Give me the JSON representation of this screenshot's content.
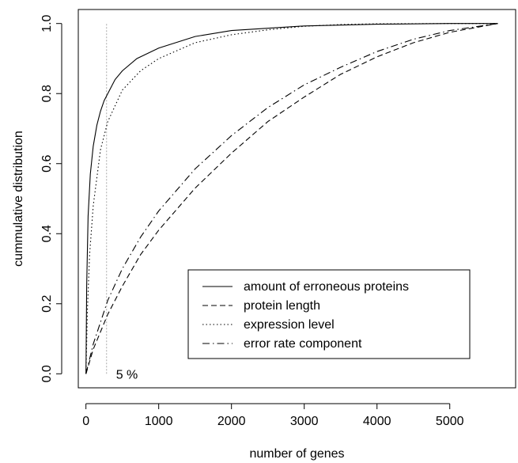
{
  "chart_data": {
    "type": "line",
    "xlabel": "number of genes",
    "ylabel": "cummulative distribution",
    "xlim": [
      -105,
      5905
    ],
    "ylim": [
      -0.04,
      1.04
    ],
    "xticks": [
      "0",
      "1000",
      "2000",
      "3000",
      "4000",
      "5000"
    ],
    "yticks": [
      "0.0",
      "0.2",
      "0.4",
      "0.6",
      "0.8",
      "1.0"
    ],
    "xtick_values": [
      0,
      1000,
      2000,
      3000,
      4000,
      5000
    ],
    "ytick_values": [
      0,
      0.2,
      0.4,
      0.6,
      0.8,
      1.0
    ],
    "legend_position": "bottom-right",
    "annotation": {
      "text": "5 %",
      "x": 283
    },
    "series": [
      {
        "name": "amount of erroneous proteins",
        "style": "solid",
        "x": [
          0,
          10,
          30,
          60,
          100,
          150,
          200,
          250,
          300,
          400,
          500,
          700,
          1000,
          1500,
          2000,
          3000,
          4000,
          5000,
          5660
        ],
        "y": [
          0.0,
          0.25,
          0.45,
          0.57,
          0.65,
          0.71,
          0.75,
          0.78,
          0.8,
          0.84,
          0.865,
          0.9,
          0.93,
          0.963,
          0.98,
          0.993,
          0.998,
          1.0,
          1.0
        ]
      },
      {
        "name": "protein length",
        "style": "dashed",
        "x": [
          0,
          100,
          300,
          500,
          750,
          1000,
          1500,
          2000,
          2500,
          3000,
          3500,
          4000,
          4500,
          5000,
          5660
        ],
        "y": [
          0.0,
          0.07,
          0.17,
          0.25,
          0.34,
          0.41,
          0.53,
          0.63,
          0.72,
          0.79,
          0.855,
          0.905,
          0.945,
          0.975,
          1.0
        ]
      },
      {
        "name": "expression level",
        "style": "dotted",
        "x": [
          0,
          20,
          50,
          100,
          200,
          300,
          500,
          750,
          1000,
          1500,
          2000,
          2500,
          3000,
          3500,
          4000,
          5000,
          5660
        ],
        "y": [
          0.0,
          0.18,
          0.34,
          0.48,
          0.64,
          0.72,
          0.81,
          0.865,
          0.9,
          0.945,
          0.968,
          0.982,
          0.992,
          0.997,
          0.999,
          1.0,
          1.0
        ]
      },
      {
        "name": "error rate component",
        "style": "dashdot",
        "x": [
          0,
          100,
          300,
          500,
          750,
          1000,
          1500,
          2000,
          2500,
          3000,
          3500,
          4000,
          4500,
          5000,
          5660
        ],
        "y": [
          0.0,
          0.085,
          0.21,
          0.3,
          0.39,
          0.465,
          0.585,
          0.68,
          0.76,
          0.825,
          0.875,
          0.92,
          0.955,
          0.98,
          1.0
        ]
      }
    ]
  }
}
